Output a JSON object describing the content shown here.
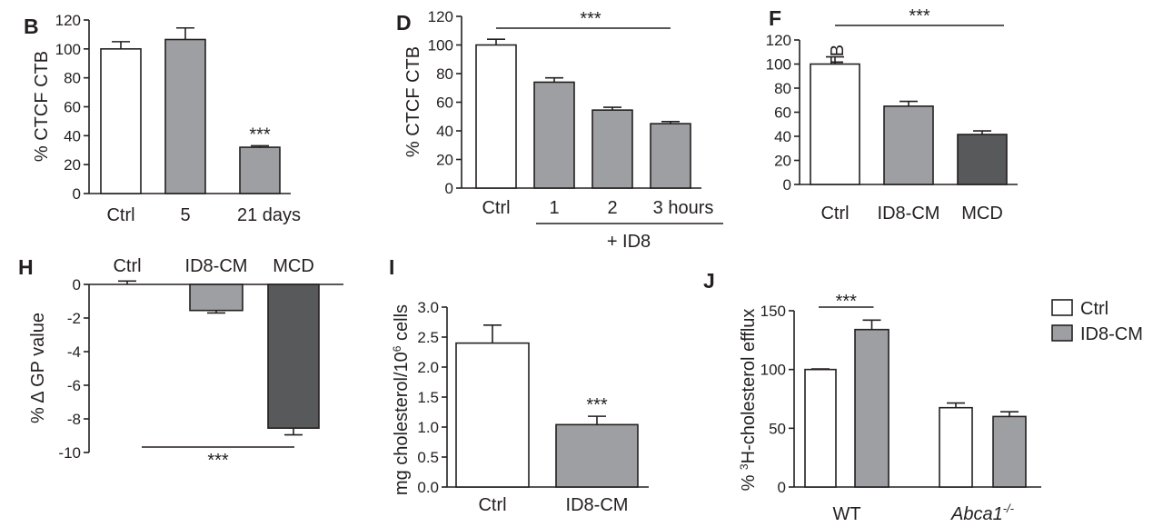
{
  "figure": {
    "colors": {
      "ctrl": "#ffffff",
      "gray": "#9d9fa2",
      "dark": "#58595b",
      "ink": "#231f20"
    }
  },
  "chart_data": [
    {
      "panel": "B",
      "type": "bar",
      "categories": [
        "Ctrl",
        "5",
        "21 days"
      ],
      "values": [
        100,
        106.5,
        32
      ],
      "errors": [
        5,
        8,
        1
      ],
      "fills": [
        "white",
        "gray",
        "gray"
      ],
      "ylabel": "% CTCF CTB",
      "ylim": [
        0,
        120
      ],
      "yticks": [
        0,
        20,
        40,
        60,
        80,
        100,
        120
      ],
      "stars": [
        {
          "text": "***",
          "over": 2
        }
      ]
    },
    {
      "panel": "D",
      "type": "bar",
      "categories": [
        "Ctrl",
        "1",
        "2",
        "3 hours"
      ],
      "values": [
        100,
        74,
        54.5,
        45
      ],
      "errors": [
        4,
        3,
        2,
        1.5
      ],
      "fills": [
        "white",
        "gray",
        "gray",
        "gray"
      ],
      "ylabel": "% CTCF CTB",
      "ylim": [
        0,
        120
      ],
      "yticks": [
        0,
        20,
        40,
        60,
        80,
        100,
        120
      ],
      "group_label": "+ ID8",
      "stars": [
        {
          "text": "***",
          "bracket": [
            0,
            3
          ]
        }
      ]
    },
    {
      "panel": "F",
      "type": "bar",
      "categories": [
        "Ctrl",
        "ID8-CM",
        "MCD"
      ],
      "values": [
        100,
        65,
        41.5
      ],
      "errors": [
        6,
        4,
        3
      ],
      "fills": [
        "white",
        "gray",
        "dark"
      ],
      "ylabel": "% CTCF CTB",
      "ylim": [
        0,
        120
      ],
      "yticks": [
        0,
        20,
        40,
        60,
        80,
        100,
        120
      ],
      "stars": [
        {
          "text": "***",
          "bracket": [
            0,
            2
          ]
        }
      ]
    },
    {
      "panel": "H",
      "type": "bar",
      "categories": [
        "Ctrl",
        "ID8-CM",
        "MCD"
      ],
      "values": [
        0,
        -1.55,
        -8.55
      ],
      "errors": [
        0.2,
        0.15,
        0.4
      ],
      "fills": [
        "white",
        "gray",
        "dark"
      ],
      "ylabel": "% Δ GP value",
      "ylim": [
        -10,
        0
      ],
      "yticks": [
        0,
        -2,
        -4,
        -6,
        -8,
        -10
      ],
      "stars": [
        {
          "text": "***",
          "bracket": [
            0,
            2
          ]
        }
      ]
    },
    {
      "panel": "I",
      "type": "bar",
      "categories": [
        "Ctrl",
        "ID8-CM"
      ],
      "values": [
        2.4,
        1.04
      ],
      "errors": [
        0.3,
        0.14
      ],
      "fills": [
        "white",
        "gray"
      ],
      "ylabel": "mg cholesterol/10",
      "ylabel_sup": "6",
      "ylabel_tail": " cells",
      "ylim": [
        0,
        3.0
      ],
      "yticks": [
        "0.0",
        "0.5",
        "1.0",
        "1.5",
        "2.0",
        "2.5",
        "3.0"
      ],
      "stars": [
        {
          "text": "***",
          "over": 1
        }
      ]
    },
    {
      "panel": "J",
      "type": "bar",
      "categories": [
        "WT",
        "Abca1"
      ],
      "category_sup": [
        "",
        "-/-"
      ],
      "series": [
        {
          "name": "Ctrl",
          "values": [
            100,
            67.5
          ],
          "errors": [
            0.5,
            4
          ]
        },
        {
          "name": "ID8-CM",
          "values": [
            134,
            60
          ],
          "errors": [
            8,
            4
          ]
        }
      ],
      "fills": [
        "white",
        "gray"
      ],
      "ylabel": "% ",
      "ylabel_sup": "3",
      "ylabel_tail": "H-cholesterol efflux",
      "ylim": [
        0,
        150
      ],
      "yticks": [
        0,
        50,
        100,
        150
      ],
      "legend": "top-right",
      "stars": [
        {
          "text": "***",
          "bracket_group": 0
        }
      ]
    }
  ]
}
